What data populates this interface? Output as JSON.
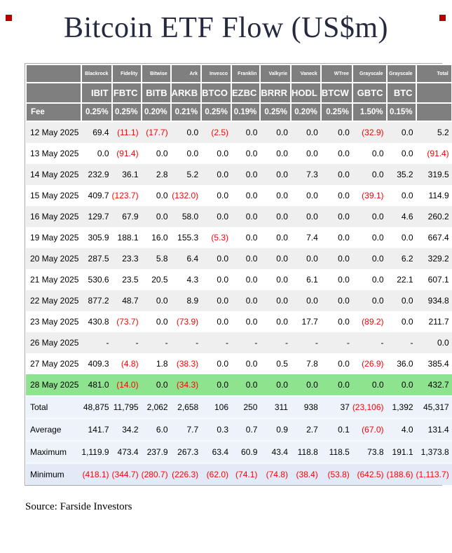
{
  "title": "Bitcoin ETF Flow (US$m)",
  "source": "Source: Farside Investors",
  "colors": {
    "header_bg": "#7f7f7f",
    "negative_text": "#ff0000",
    "highlight_row_green": "#8ee48e",
    "stripe_row": "#efefef",
    "summary_bg": "#edf2fb",
    "summary_minimum_bg": "#e2eaf7",
    "title_text": "#252a40",
    "corner_mark_red": "#b30000"
  },
  "chart_data": {
    "type": "table",
    "title": "Bitcoin ETF Flow (US$m)",
    "total_header": "Total",
    "fee_label": "Fee",
    "providers": [
      "Blackrock",
      "Fidelity",
      "Bitwise",
      "Ark",
      "Invesco",
      "Franklin",
      "Valkyrie",
      "Vaneck",
      "WTree",
      "Grayscale",
      "Grayscale"
    ],
    "tickers": [
      "IBIT",
      "FBTC",
      "BITB",
      "ARKB",
      "BTCO",
      "EZBC",
      "BRRR",
      "HODL",
      "BTCW",
      "GBTC",
      "BTC"
    ],
    "fees": [
      "0.25%",
      "0.25%",
      "0.20%",
      "0.21%",
      "0.25%",
      "0.19%",
      "0.25%",
      "0.20%",
      "0.25%",
      "1.50%",
      "0.15%"
    ],
    "daily_rows": [
      {
        "date": "12 May 2025",
        "highlight": false,
        "values": [
          "69.4",
          "(11.1)",
          "(17.7)",
          "0.0",
          "(2.5)",
          "0.0",
          "0.0",
          "0.0",
          "0.0",
          "(32.9)",
          "0.0",
          "5.2"
        ]
      },
      {
        "date": "13 May 2025",
        "highlight": false,
        "values": [
          "0.0",
          "(91.4)",
          "0.0",
          "0.0",
          "0.0",
          "0.0",
          "0.0",
          "0.0",
          "0.0",
          "0.0",
          "0.0",
          "(91.4)"
        ]
      },
      {
        "date": "14 May 2025",
        "highlight": false,
        "values": [
          "232.9",
          "36.1",
          "2.8",
          "5.2",
          "0.0",
          "0.0",
          "0.0",
          "7.3",
          "0.0",
          "0.0",
          "35.2",
          "319.5"
        ]
      },
      {
        "date": "15 May 2025",
        "highlight": false,
        "values": [
          "409.7",
          "(123.7)",
          "0.0",
          "(132.0)",
          "0.0",
          "0.0",
          "0.0",
          "0.0",
          "0.0",
          "(39.1)",
          "0.0",
          "114.9"
        ]
      },
      {
        "date": "16 May 2025",
        "highlight": false,
        "values": [
          "129.7",
          "67.9",
          "0.0",
          "58.0",
          "0.0",
          "0.0",
          "0.0",
          "0.0",
          "0.0",
          "0.0",
          "4.6",
          "260.2"
        ]
      },
      {
        "date": "19 May 2025",
        "highlight": false,
        "values": [
          "305.9",
          "188.1",
          "16.0",
          "155.3",
          "(5.3)",
          "0.0",
          "0.0",
          "7.4",
          "0.0",
          "0.0",
          "0.0",
          "667.4"
        ]
      },
      {
        "date": "20 May 2025",
        "highlight": false,
        "values": [
          "287.5",
          "23.3",
          "5.8",
          "6.4",
          "0.0",
          "0.0",
          "0.0",
          "0.0",
          "0.0",
          "0.0",
          "6.2",
          "329.2"
        ]
      },
      {
        "date": "21 May 2025",
        "highlight": false,
        "values": [
          "530.6",
          "23.5",
          "20.5",
          "4.3",
          "0.0",
          "0.0",
          "0.0",
          "6.1",
          "0.0",
          "0.0",
          "22.1",
          "607.1"
        ]
      },
      {
        "date": "22 May 2025",
        "highlight": false,
        "values": [
          "877.2",
          "48.7",
          "0.0",
          "8.9",
          "0.0",
          "0.0",
          "0.0",
          "0.0",
          "0.0",
          "0.0",
          "0.0",
          "934.8"
        ]
      },
      {
        "date": "23 May 2025",
        "highlight": false,
        "values": [
          "430.8",
          "(73.7)",
          "0.0",
          "(73.9)",
          "0.0",
          "0.0",
          "0.0",
          "17.7",
          "0.0",
          "(89.2)",
          "0.0",
          "211.7"
        ]
      },
      {
        "date": "26 May 2025",
        "highlight": false,
        "values": [
          "-",
          "-",
          "-",
          "-",
          "-",
          "-",
          "-",
          "-",
          "-",
          "-",
          "-",
          "0.0"
        ]
      },
      {
        "date": "27 May 2025",
        "highlight": false,
        "values": [
          "409.3",
          "(4.8)",
          "1.8",
          "(38.3)",
          "0.0",
          "0.0",
          "0.5",
          "7.8",
          "0.0",
          "(26.9)",
          "36.0",
          "385.4"
        ]
      },
      {
        "date": "28 May 2025",
        "highlight": true,
        "values": [
          "481.0",
          "(14.0)",
          "0.0",
          "(34.3)",
          "0.0",
          "0.0",
          "0.0",
          "0.0",
          "0.0",
          "0.0",
          "0.0",
          "432.7"
        ]
      }
    ],
    "summary_rows": [
      {
        "label": "Total",
        "values": [
          "48,875",
          "11,795",
          "2,062",
          "2,658",
          "106",
          "250",
          "311",
          "938",
          "37",
          "(23,106)",
          "1,392",
          "45,317"
        ]
      },
      {
        "label": "Average",
        "values": [
          "141.7",
          "34.2",
          "6.0",
          "7.7",
          "0.3",
          "0.7",
          "0.9",
          "2.7",
          "0.1",
          "(67.0)",
          "4.0",
          "131.4"
        ]
      },
      {
        "label": "Maximum",
        "values": [
          "1,119.9",
          "473.4",
          "237.9",
          "267.3",
          "63.4",
          "60.9",
          "43.4",
          "118.8",
          "118.5",
          "73.8",
          "191.1",
          "1,373.8"
        ]
      },
      {
        "label": "Minimum",
        "values": [
          "(418.1)",
          "(344.7)",
          "(280.7)",
          "(226.3)",
          "(62.0)",
          "(74.1)",
          "(74.8)",
          "(38.4)",
          "(53.8)",
          "(642.5)",
          "(188.6)",
          "(1,113.7)"
        ]
      }
    ]
  }
}
